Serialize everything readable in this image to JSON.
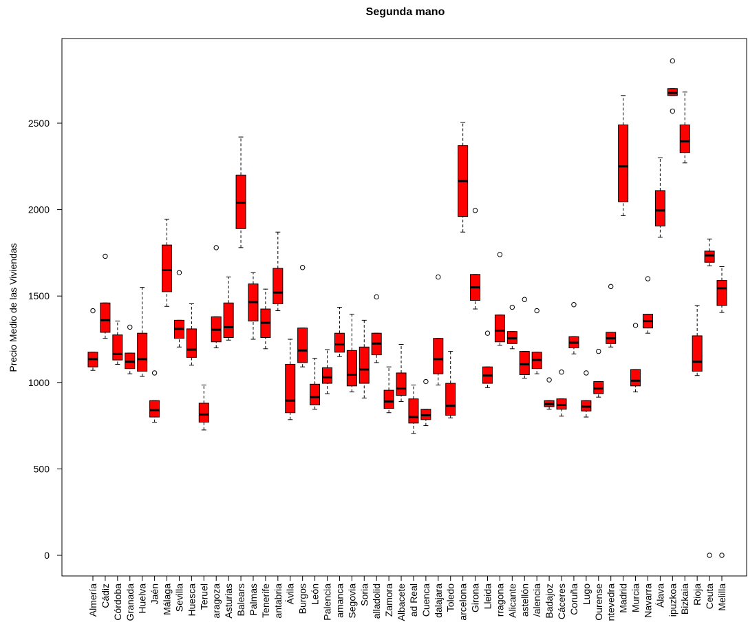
{
  "chart_data": {
    "type": "boxplot",
    "title": "Segunda mano",
    "xlabel": "",
    "ylabel": "Precio Medio de las Viviendas",
    "ylim": [
      -120,
      2960
    ],
    "yticks": [
      0,
      500,
      1000,
      1500,
      2000,
      2500
    ],
    "box_color": "#ff0000",
    "categories": [
      "Almería",
      "Cádiz",
      "Córdoba",
      "Granada",
      "Huelva",
      "Jaén",
      "Málaga",
      "Sevilla",
      "Huesca",
      "Teruel",
      "Zaragoza",
      "Asturias",
      "Baleares",
      "Las Palmas",
      "Tenerife",
      "Cantabria",
      "Ávila",
      "Burgos",
      "León",
      "Palencia",
      "Salamanca",
      "Segovia",
      "Soria",
      "Valladolid",
      "Zamora",
      "Albacete",
      "Ciudad Real",
      "Cuenca",
      "Guadalajara",
      "Toledo",
      "Barcelona",
      "Girona",
      "Lleida",
      "Tarragona",
      "Alicante",
      "Castellón",
      "Valencia",
      "Badajoz",
      "Cáceres",
      "Coruña",
      "Lugo",
      "Ourense",
      "Pontevedra",
      "Madrid",
      "Murcia",
      "Navarra",
      "Álava",
      "Guipuzkoa",
      "Bizkaia",
      "Rioja",
      "Ceuta",
      "Melilla"
    ],
    "tick_labels": [
      "Almería",
      "Cádiz",
      "Córdoba",
      "Granada",
      "Huelva",
      "Jaén",
      "Málaga",
      "Sevilla",
      "Huesca",
      "Teruel",
      "aragoza",
      "Asturias",
      "Balears",
      "Palmas",
      "Tenerife",
      "antabria",
      "Ávila",
      "Burgos",
      "León",
      "Palencia",
      "amanca",
      "Segovia",
      "Soria",
      "alladolid",
      "Zamora",
      "Albacete",
      "ad Real",
      "Cuenca",
      "dalajara",
      "Toledo",
      "arcelona",
      "Girona",
      "Lleida",
      "rragona",
      "Alicante",
      "astellón",
      "/alencia",
      "Badajoz",
      "Cáceres",
      "Coruña",
      "Lugo",
      "Ourense",
      "ntevedra",
      "Madrid",
      "Murcia",
      "Navarra",
      "Álava",
      "ipuzkoa",
      "Bizkaia",
      "Rioja",
      "Ceuta",
      "Melilla"
    ],
    "boxes": [
      {
        "whisker_low": 1070,
        "q1": 1090,
        "median": 1135,
        "q3": 1175,
        "whisker_high": 1175,
        "outliers": [
          1415
        ]
      },
      {
        "whisker_low": 1255,
        "q1": 1290,
        "median": 1360,
        "q3": 1460,
        "whisker_high": 1460,
        "outliers": [
          1730
        ]
      },
      {
        "whisker_low": 1105,
        "q1": 1130,
        "median": 1165,
        "q3": 1275,
        "whisker_high": 1355,
        "outliers": []
      },
      {
        "whisker_low": 1050,
        "q1": 1080,
        "median": 1120,
        "q3": 1170,
        "whisker_high": 1170,
        "outliers": [
          1320
        ]
      },
      {
        "whisker_low": 1035,
        "q1": 1065,
        "median": 1135,
        "q3": 1285,
        "whisker_high": 1550,
        "outliers": []
      },
      {
        "whisker_low": 770,
        "q1": 800,
        "median": 840,
        "q3": 895,
        "whisker_high": 895,
        "outliers": [
          1055
        ]
      },
      {
        "whisker_low": 1440,
        "q1": 1525,
        "median": 1650,
        "q3": 1795,
        "whisker_high": 1945,
        "outliers": []
      },
      {
        "whisker_low": 1205,
        "q1": 1255,
        "median": 1310,
        "q3": 1360,
        "whisker_high": 1360,
        "outliers": [
          1635
        ]
      },
      {
        "whisker_low": 1100,
        "q1": 1145,
        "median": 1190,
        "q3": 1310,
        "whisker_high": 1455,
        "outliers": []
      },
      {
        "whisker_low": 725,
        "q1": 770,
        "median": 815,
        "q3": 880,
        "whisker_high": 985,
        "outliers": []
      },
      {
        "whisker_low": 1200,
        "q1": 1235,
        "median": 1305,
        "q3": 1380,
        "whisker_high": 1380,
        "outliers": [
          1780
        ]
      },
      {
        "whisker_low": 1245,
        "q1": 1260,
        "median": 1320,
        "q3": 1460,
        "whisker_high": 1610,
        "outliers": []
      },
      {
        "whisker_low": 1780,
        "q1": 1890,
        "median": 2040,
        "q3": 2200,
        "whisker_high": 2420,
        "outliers": []
      },
      {
        "whisker_low": 1250,
        "q1": 1355,
        "median": 1465,
        "q3": 1570,
        "whisker_high": 1635,
        "outliers": []
      },
      {
        "whisker_low": 1195,
        "q1": 1260,
        "median": 1345,
        "q3": 1425,
        "whisker_high": 1540,
        "outliers": []
      },
      {
        "whisker_low": 1415,
        "q1": 1455,
        "median": 1520,
        "q3": 1660,
        "whisker_high": 1870,
        "outliers": []
      },
      {
        "whisker_low": 785,
        "q1": 825,
        "median": 895,
        "q3": 1105,
        "whisker_high": 1250,
        "outliers": []
      },
      {
        "whisker_low": 1090,
        "q1": 1115,
        "median": 1185,
        "q3": 1315,
        "whisker_high": 1315,
        "outliers": [
          1665
        ]
      },
      {
        "whisker_low": 845,
        "q1": 870,
        "median": 915,
        "q3": 990,
        "whisker_high": 1140,
        "outliers": []
      },
      {
        "whisker_low": 935,
        "q1": 995,
        "median": 1030,
        "q3": 1085,
        "whisker_high": 1190,
        "outliers": []
      },
      {
        "whisker_low": 1150,
        "q1": 1175,
        "median": 1220,
        "q3": 1285,
        "whisker_high": 1435,
        "outliers": []
      },
      {
        "whisker_low": 945,
        "q1": 980,
        "median": 1045,
        "q3": 1185,
        "whisker_high": 1395,
        "outliers": []
      },
      {
        "whisker_low": 910,
        "q1": 995,
        "median": 1075,
        "q3": 1205,
        "whisker_high": 1360,
        "outliers": []
      },
      {
        "whisker_low": 1115,
        "q1": 1160,
        "median": 1225,
        "q3": 1285,
        "whisker_high": 1285,
        "outliers": [
          1495
        ]
      },
      {
        "whisker_low": 825,
        "q1": 850,
        "median": 890,
        "q3": 955,
        "whisker_high": 1090,
        "outliers": []
      },
      {
        "whisker_low": 890,
        "q1": 925,
        "median": 965,
        "q3": 1055,
        "whisker_high": 1220,
        "outliers": []
      },
      {
        "whisker_low": 705,
        "q1": 765,
        "median": 800,
        "q3": 905,
        "whisker_high": 985,
        "outliers": []
      },
      {
        "whisker_low": 750,
        "q1": 785,
        "median": 810,
        "q3": 845,
        "whisker_high": 845,
        "outliers": [
          1005
        ]
      },
      {
        "whisker_low": 985,
        "q1": 1050,
        "median": 1135,
        "q3": 1255,
        "whisker_high": 1255,
        "outliers": [
          1610
        ]
      },
      {
        "whisker_low": 795,
        "q1": 810,
        "median": 865,
        "q3": 995,
        "whisker_high": 1180,
        "outliers": []
      },
      {
        "whisker_low": 1870,
        "q1": 1960,
        "median": 2165,
        "q3": 2370,
        "whisker_high": 2505,
        "outliers": []
      },
      {
        "whisker_low": 1425,
        "q1": 1475,
        "median": 1550,
        "q3": 1625,
        "whisker_high": 1625,
        "outliers": [
          1995
        ]
      },
      {
        "whisker_low": 970,
        "q1": 995,
        "median": 1040,
        "q3": 1090,
        "whisker_high": 1090,
        "outliers": [
          1285
        ]
      },
      {
        "whisker_low": 1215,
        "q1": 1235,
        "median": 1300,
        "q3": 1390,
        "whisker_high": 1390,
        "outliers": [
          1740
        ]
      },
      {
        "whisker_low": 1195,
        "q1": 1225,
        "median": 1255,
        "q3": 1295,
        "whisker_high": 1295,
        "outliers": [
          1435
        ]
      },
      {
        "whisker_low": 1025,
        "q1": 1045,
        "median": 1105,
        "q3": 1180,
        "whisker_high": 1180,
        "outliers": [
          1480
        ]
      },
      {
        "whisker_low": 1050,
        "q1": 1080,
        "median": 1130,
        "q3": 1175,
        "whisker_high": 1175,
        "outliers": [
          1415
        ]
      },
      {
        "whisker_low": 845,
        "q1": 860,
        "median": 875,
        "q3": 895,
        "whisker_high": 895,
        "outliers": [
          1015
        ]
      },
      {
        "whisker_low": 805,
        "q1": 845,
        "median": 870,
        "q3": 905,
        "whisker_high": 905,
        "outliers": [
          1060
        ]
      },
      {
        "whisker_low": 1165,
        "q1": 1200,
        "median": 1230,
        "q3": 1265,
        "whisker_high": 1265,
        "outliers": [
          1450
        ]
      },
      {
        "whisker_low": 800,
        "q1": 835,
        "median": 860,
        "q3": 895,
        "whisker_high": 895,
        "outliers": [
          1055
        ]
      },
      {
        "whisker_low": 915,
        "q1": 935,
        "median": 965,
        "q3": 1005,
        "whisker_high": 1005,
        "outliers": [
          1180
        ]
      },
      {
        "whisker_low": 1205,
        "q1": 1225,
        "median": 1255,
        "q3": 1290,
        "whisker_high": 1290,
        "outliers": [
          1555
        ]
      },
      {
        "whisker_low": 1965,
        "q1": 2045,
        "median": 2250,
        "q3": 2490,
        "whisker_high": 2660,
        "outliers": []
      },
      {
        "whisker_low": 945,
        "q1": 980,
        "median": 1010,
        "q3": 1075,
        "whisker_high": 1075,
        "outliers": [
          1330
        ]
      },
      {
        "whisker_low": 1285,
        "q1": 1315,
        "median": 1355,
        "q3": 1395,
        "whisker_high": 1395,
        "outliers": [
          1600
        ]
      },
      {
        "whisker_low": 1840,
        "q1": 1905,
        "median": 1995,
        "q3": 2110,
        "whisker_high": 2300,
        "outliers": []
      },
      {
        "whisker_low": 2660,
        "q1": 2660,
        "median": 2675,
        "q3": 2700,
        "whisker_high": 2700,
        "outliers": [
          2570,
          2860
        ]
      },
      {
        "whisker_low": 2270,
        "q1": 2330,
        "median": 2395,
        "q3": 2490,
        "whisker_high": 2680,
        "outliers": []
      },
      {
        "whisker_low": 1040,
        "q1": 1065,
        "median": 1120,
        "q3": 1270,
        "whisker_high": 1445,
        "outliers": []
      },
      {
        "whisker_low": 1675,
        "q1": 1695,
        "median": 1735,
        "q3": 1760,
        "whisker_high": 1830,
        "outliers": [
          0
        ]
      },
      {
        "whisker_low": 1405,
        "q1": 1445,
        "median": 1545,
        "q3": 1590,
        "whisker_high": 1670,
        "outliers": [
          0
        ]
      }
    ]
  }
}
